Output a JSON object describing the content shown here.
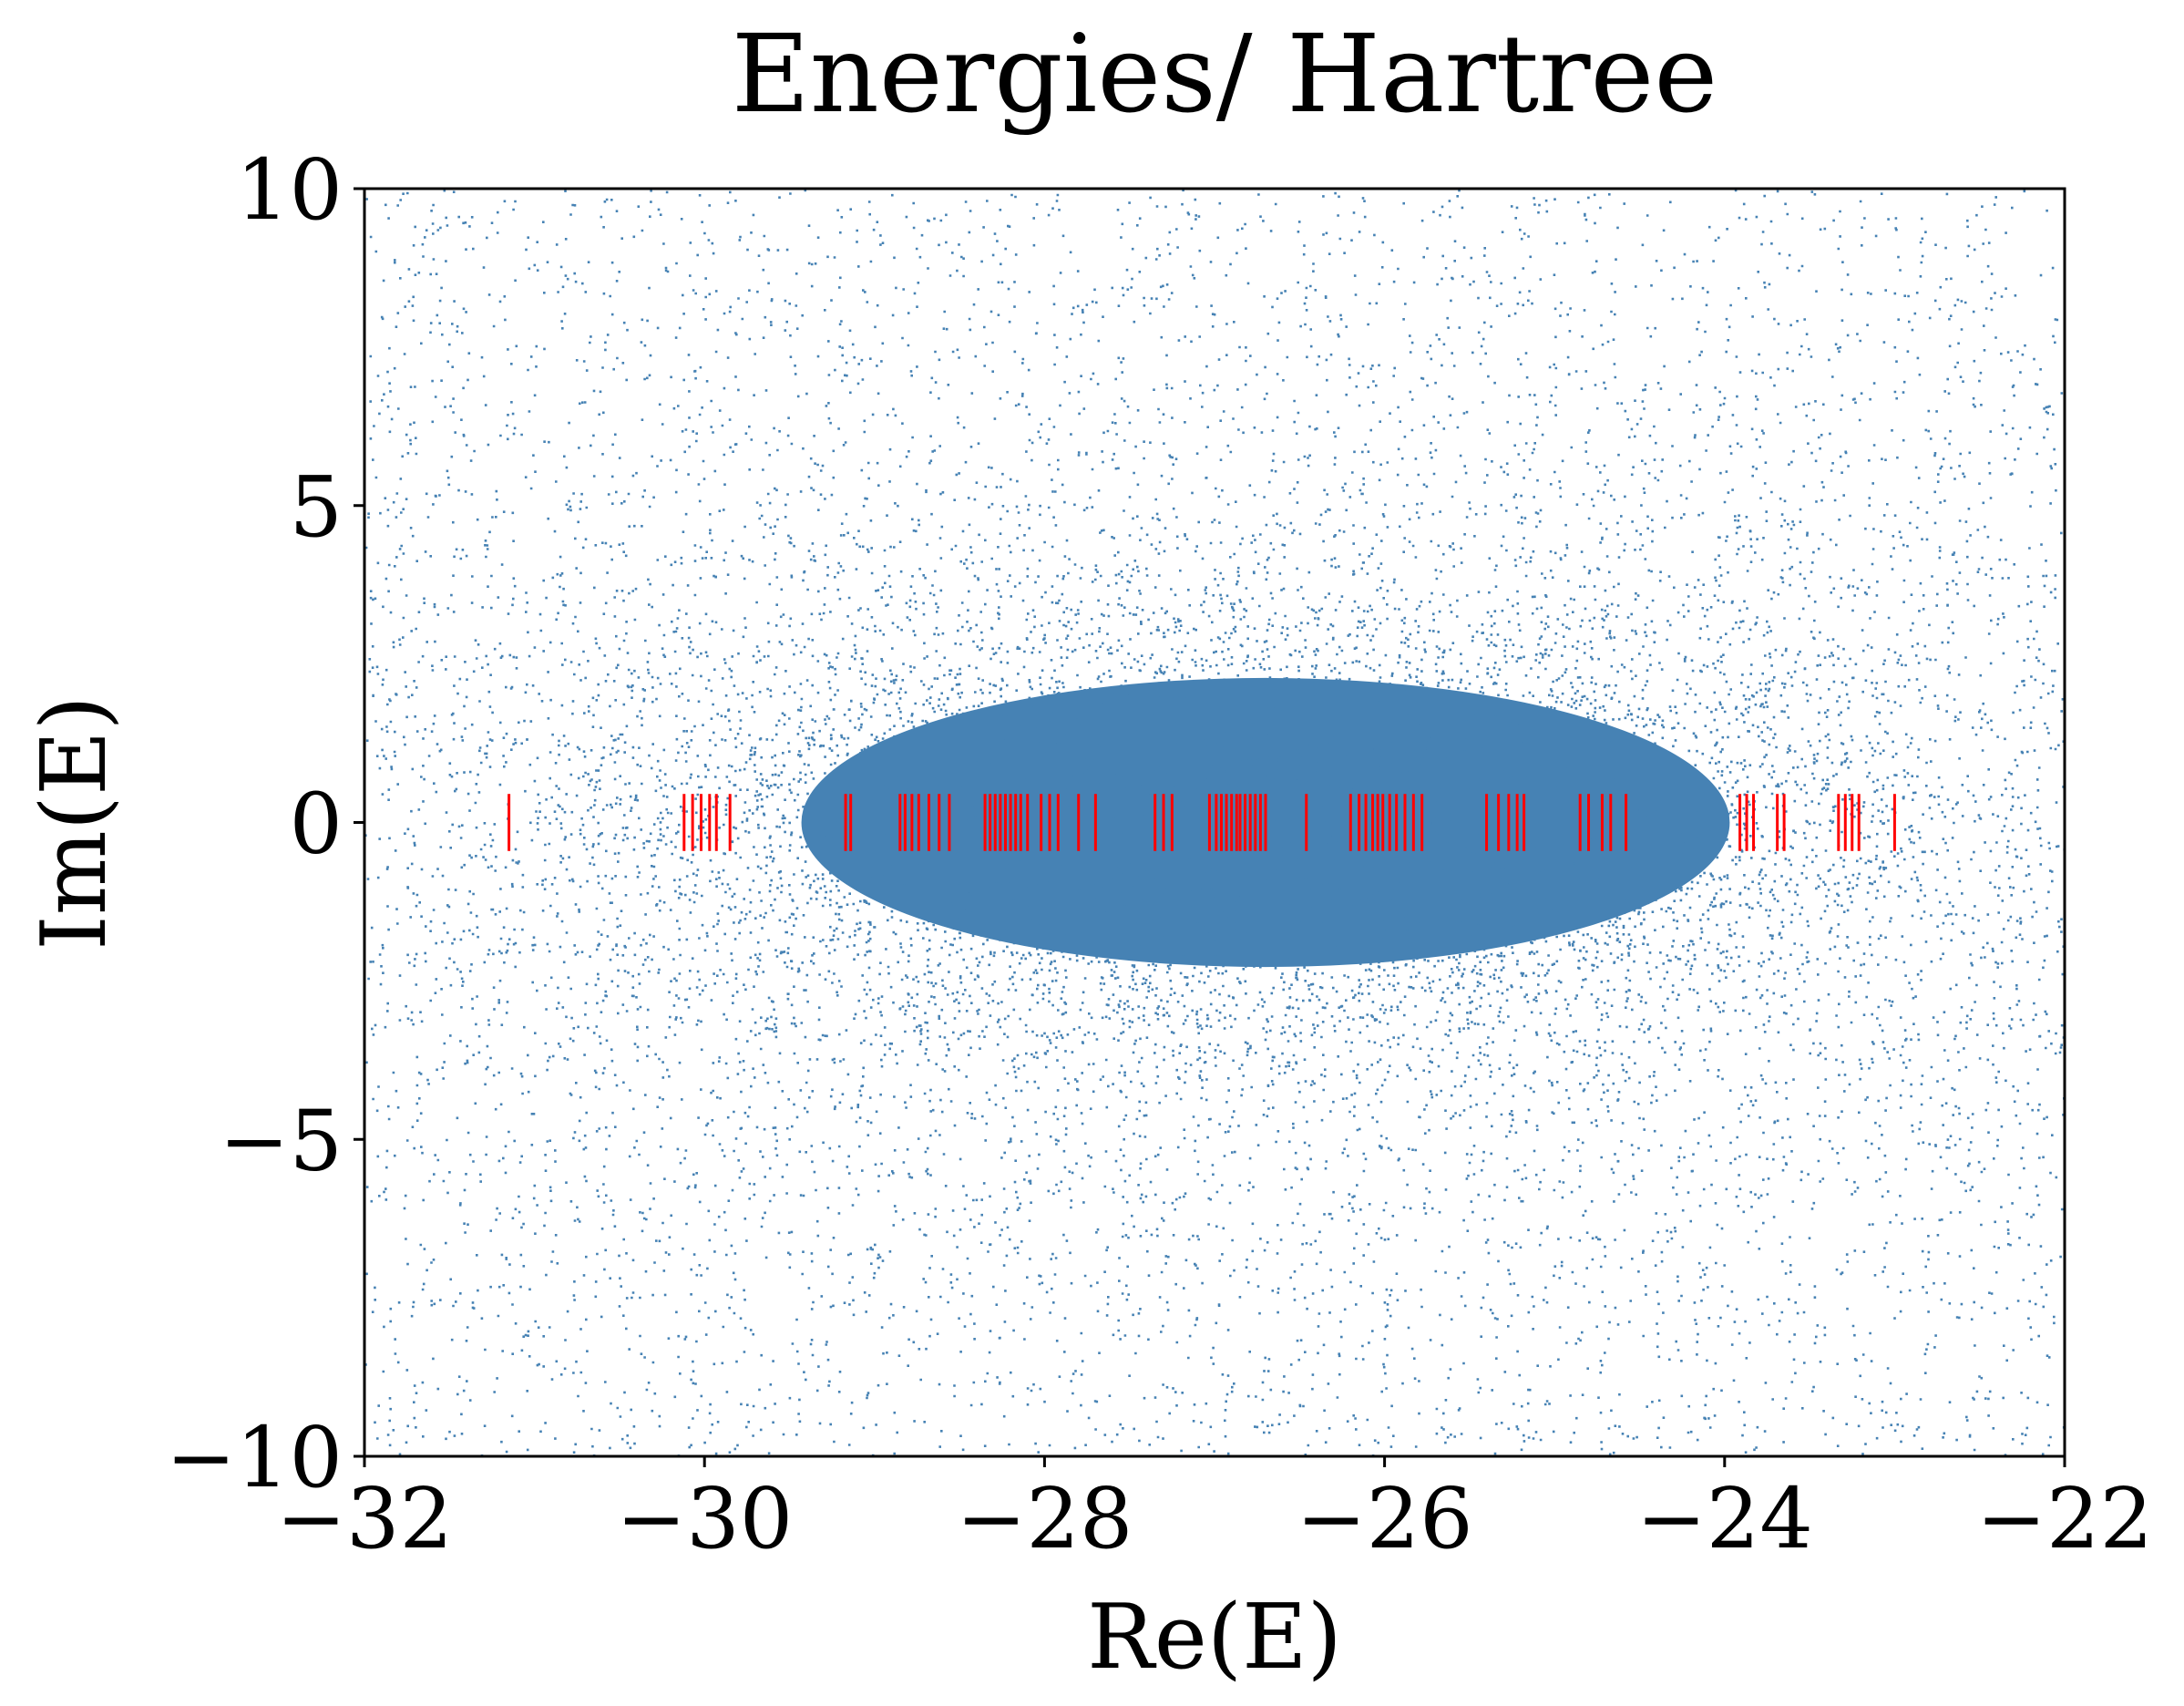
{
  "chart_data": {
    "type": "scatter",
    "title": "Energies/ Hartree",
    "xlabel": "Re(E)",
    "ylabel": "Im(E)",
    "xlim": [
      -32,
      -22
    ],
    "ylim": [
      -10,
      10
    ],
    "xticks": [
      -32,
      -30,
      -28,
      -26,
      -24,
      -22
    ],
    "yticks": [
      -10,
      -5,
      0,
      5,
      10
    ],
    "xtick_labels": [
      "−32",
      "−30",
      "−28",
      "−26",
      "−24",
      "−22"
    ],
    "ytick_labels": [
      "−10",
      "−5",
      "0",
      "5",
      "10"
    ],
    "grid": false,
    "legend": "none",
    "colors": {
      "scatter": "#4682b4",
      "markers": "#ff0000"
    },
    "series": [
      {
        "kind": "scatter-cloud",
        "description_of_distribution": "dense elliptical cloud of complex energies centred near Re=-26.7, Im=0",
        "center": [
          -26.7,
          0
        ],
        "spread": [
          2.6,
          2.4
        ],
        "marker": "point"
      },
      {
        "kind": "vertical-marks",
        "y_range": [
          -0.45,
          0.45
        ],
        "x": [
          -31.15,
          -30.12,
          -30.07,
          -30.02,
          -29.97,
          -29.93,
          -29.85,
          -29.17,
          -29.14,
          -28.85,
          -28.82,
          -28.78,
          -28.74,
          -28.68,
          -28.62,
          -28.56,
          -28.35,
          -28.32,
          -28.29,
          -28.26,
          -28.23,
          -28.2,
          -28.17,
          -28.14,
          -28.1,
          -28.02,
          -27.97,
          -27.92,
          -27.8,
          -27.7,
          -27.35,
          -27.3,
          -27.25,
          -27.03,
          -26.99,
          -26.96,
          -26.93,
          -26.9,
          -26.87,
          -26.85,
          -26.82,
          -26.79,
          -26.76,
          -26.73,
          -26.7,
          -26.46,
          -26.2,
          -26.15,
          -26.11,
          -26.07,
          -26.04,
          -26.01,
          -25.97,
          -25.93,
          -25.88,
          -25.83,
          -25.78,
          -25.4,
          -25.33,
          -25.27,
          -25.22,
          -25.18,
          -24.85,
          -24.8,
          -24.72,
          -24.67,
          -24.58,
          -23.91,
          -23.87,
          -23.83,
          -23.69,
          -23.65,
          -23.33,
          -23.29,
          -23.25,
          -23.21,
          -23.0
        ]
      }
    ]
  }
}
